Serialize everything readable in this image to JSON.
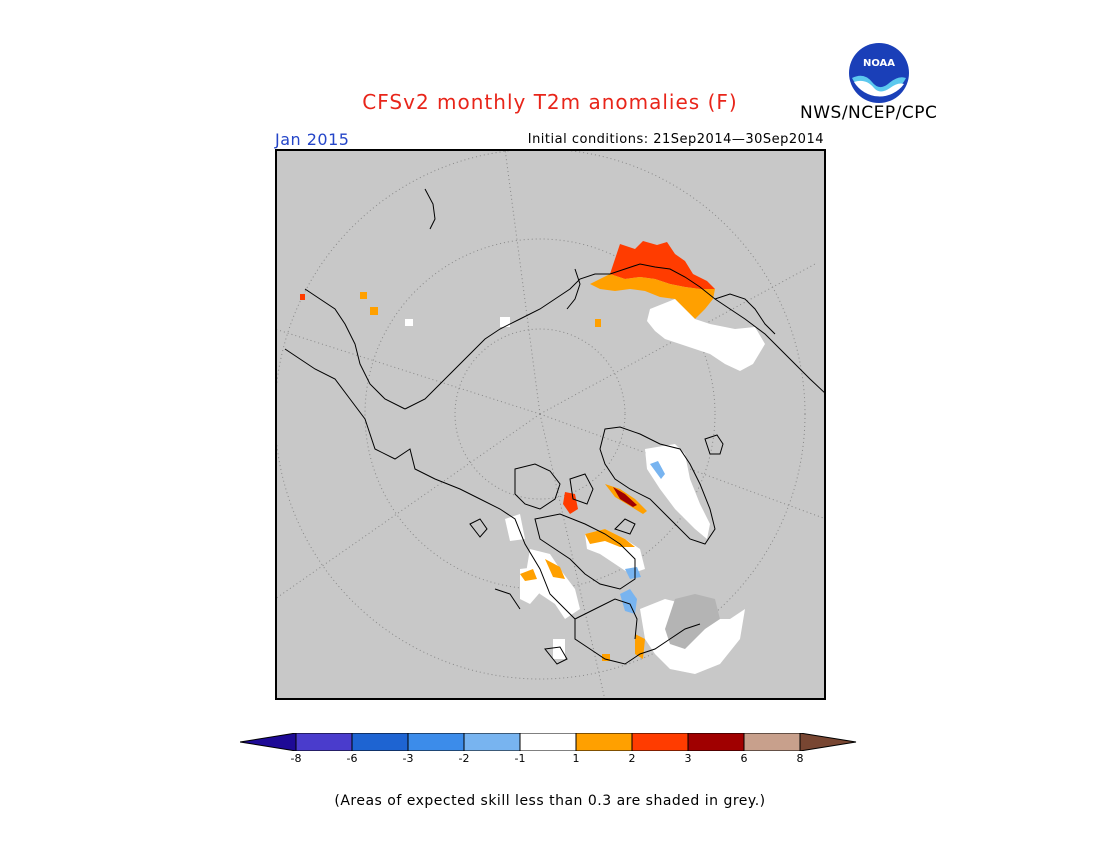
{
  "title": "CFSv2 monthly T2m anomalies (F)",
  "agency": "NWS/NCEP/CPC",
  "logo_text": "NOAA",
  "target_month": "Jan 2015",
  "initial_conditions": "Initial conditions: 21Sep2014—30Sep2014",
  "skill_note": "(Areas of expected skill less than 0.3 are shaded in grey.)",
  "colors": {
    "title": "#e8251a",
    "month": "#2445c8",
    "map_background": "#c8c8c8",
    "coastline": "#000000"
  },
  "legend": {
    "labels": [
      "-8",
      "-6",
      "-3",
      "-2",
      "-1",
      "1",
      "2",
      "3",
      "6",
      "8"
    ],
    "colors": [
      "#1e0a96",
      "#4a3ccc",
      "#1e64d2",
      "#3c8cea",
      "#78b4f0",
      "#ffffff",
      "#ffa000",
      "#ff3c00",
      "#a00000",
      "#c8a08c",
      "#784632"
    ]
  }
}
